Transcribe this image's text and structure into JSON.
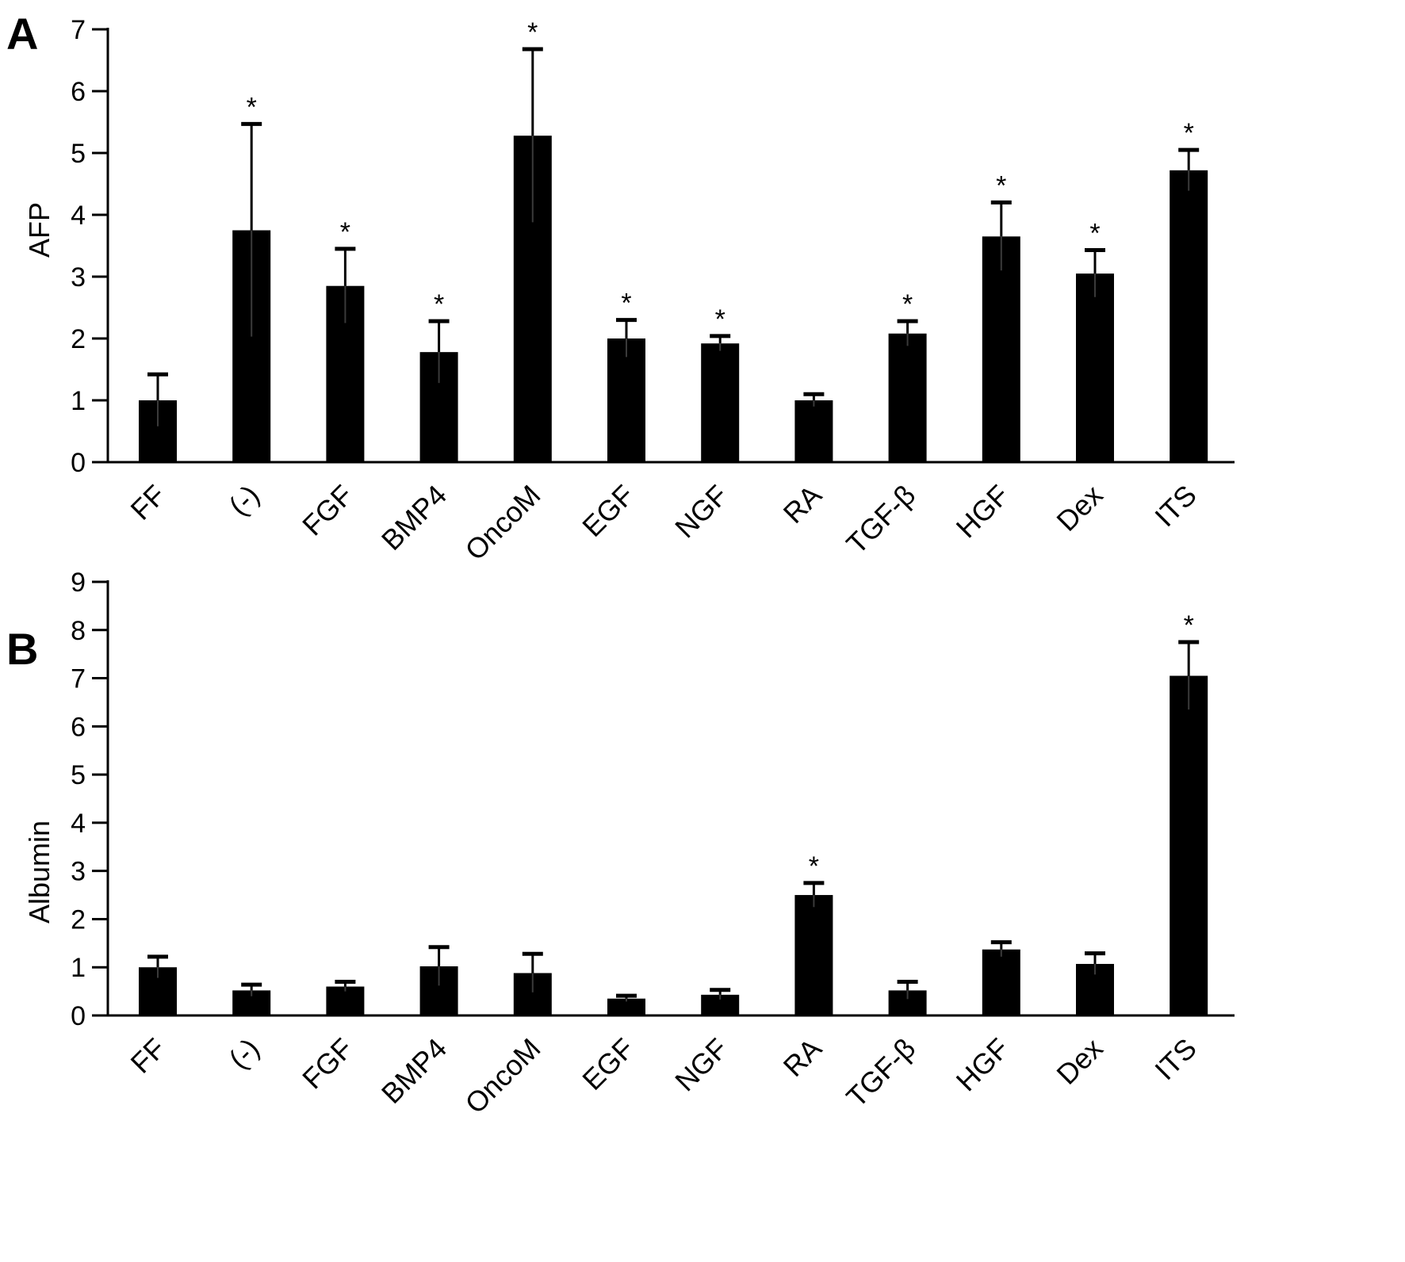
{
  "figure": {
    "panels": [
      {
        "letter": "A",
        "chart_data": {
          "type": "bar",
          "title": "",
          "xlabel": "",
          "ylabel": "AFP",
          "ylim": [
            0,
            7
          ],
          "yticks": [
            0,
            1,
            2,
            3,
            4,
            5,
            6,
            7
          ],
          "categories": [
            "FF",
            "(-)",
            "FGF",
            "BMP4",
            "OncoM",
            "EGF",
            "NGF",
            "RA",
            "TGF-β",
            "HGF",
            "Dex",
            "ITS"
          ],
          "values": [
            1.0,
            3.75,
            2.85,
            1.78,
            5.28,
            2.0,
            1.92,
            1.0,
            2.08,
            3.65,
            3.05,
            4.72
          ],
          "errors": [
            0.42,
            1.72,
            0.6,
            0.5,
            1.4,
            0.3,
            0.12,
            0.1,
            0.2,
            0.55,
            0.38,
            0.33
          ],
          "significant": [
            false,
            true,
            true,
            true,
            true,
            true,
            true,
            false,
            true,
            true,
            true,
            true
          ],
          "significance_marker": "*",
          "bar_color": "#000000",
          "grid": false
        }
      },
      {
        "letter": "B",
        "chart_data": {
          "type": "bar",
          "title": "",
          "xlabel": "",
          "ylabel": "Albumin",
          "ylim": [
            0,
            9
          ],
          "yticks": [
            0,
            1,
            2,
            3,
            4,
            5,
            6,
            7,
            8,
            9
          ],
          "categories": [
            "FF",
            "(-)",
            "FGF",
            "BMP4",
            "OncoM",
            "EGF",
            "NGF",
            "RA",
            "TGF-β",
            "HGF",
            "Dex",
            "ITS"
          ],
          "values": [
            1.0,
            0.52,
            0.6,
            1.02,
            0.88,
            0.35,
            0.43,
            2.5,
            0.52,
            1.37,
            1.07,
            7.05
          ],
          "errors": [
            0.22,
            0.12,
            0.1,
            0.4,
            0.4,
            0.06,
            0.1,
            0.25,
            0.18,
            0.15,
            0.22,
            0.7
          ],
          "significant": [
            false,
            false,
            false,
            false,
            false,
            false,
            false,
            true,
            false,
            false,
            false,
            true
          ],
          "significance_marker": "*",
          "bar_color": "#000000",
          "grid": false
        }
      }
    ]
  }
}
